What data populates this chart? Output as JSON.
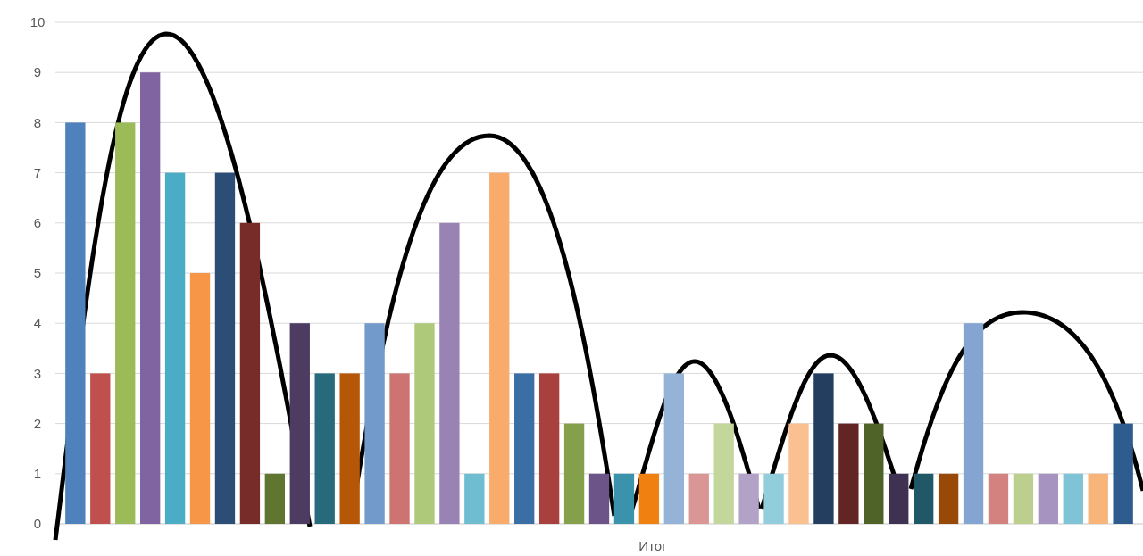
{
  "chart_data": {
    "type": "bar",
    "categories": [
      "Итог"
    ],
    "ylim": [
      0,
      10
    ],
    "yticks": [
      0,
      1,
      2,
      3,
      4,
      5,
      6,
      7,
      8,
      9,
      10
    ],
    "grid": "y",
    "series": [
      {
        "color": "#4f81bd",
        "values": [
          8
        ]
      },
      {
        "color": "#c0504d",
        "values": [
          3
        ]
      },
      {
        "color": "#9bbb59",
        "values": [
          8
        ]
      },
      {
        "color": "#8064a2",
        "values": [
          9
        ]
      },
      {
        "color": "#4bacc6",
        "values": [
          7
        ]
      },
      {
        "color": "#f79646",
        "values": [
          5
        ]
      },
      {
        "color": "#2c4d75",
        "values": [
          7
        ]
      },
      {
        "color": "#772c2a",
        "values": [
          6
        ]
      },
      {
        "color": "#5f7530",
        "values": [
          1
        ]
      },
      {
        "color": "#4d3b62",
        "values": [
          4
        ]
      },
      {
        "color": "#276a7c",
        "values": [
          3
        ]
      },
      {
        "color": "#b65708",
        "values": [
          3
        ]
      },
      {
        "color": "#729aca",
        "values": [
          4
        ]
      },
      {
        "color": "#cd7371",
        "values": [
          3
        ]
      },
      {
        "color": "#afc97a",
        "values": [
          4
        ]
      },
      {
        "color": "#9983b5",
        "values": [
          6
        ]
      },
      {
        "color": "#6fbdd1",
        "values": [
          1
        ]
      },
      {
        "color": "#f9ab6b",
        "values": [
          7
        ]
      },
      {
        "color": "#3a6ea5",
        "values": [
          3
        ]
      },
      {
        "color": "#a8403d",
        "values": [
          3
        ]
      },
      {
        "color": "#84a04b",
        "values": [
          2
        ]
      },
      {
        "color": "#6c5489",
        "values": [
          1
        ]
      },
      {
        "color": "#3b93ab",
        "values": [
          1
        ]
      },
      {
        "color": "#f0800f",
        "values": [
          1
        ]
      },
      {
        "color": "#95b3d7",
        "values": [
          3
        ]
      },
      {
        "color": "#d99694",
        "values": [
          1
        ]
      },
      {
        "color": "#c3d69b",
        "values": [
          2
        ]
      },
      {
        "color": "#b3a2c7",
        "values": [
          1
        ]
      },
      {
        "color": "#92cddc",
        "values": [
          1
        ]
      },
      {
        "color": "#fac090",
        "values": [
          2
        ]
      },
      {
        "color": "#233e5f",
        "values": [
          3
        ]
      },
      {
        "color": "#632523",
        "values": [
          2
        ]
      },
      {
        "color": "#4f6228",
        "values": [
          2
        ]
      },
      {
        "color": "#3f3151",
        "values": [
          1
        ]
      },
      {
        "color": "#205867",
        "values": [
          1
        ]
      },
      {
        "color": "#984807",
        "values": [
          1
        ]
      },
      {
        "color": "#84a5d1",
        "values": [
          4
        ]
      },
      {
        "color": "#d38280",
        "values": [
          1
        ]
      },
      {
        "color": "#bccf8f",
        "values": [
          1
        ]
      },
      {
        "color": "#a693bf",
        "values": [
          1
        ]
      },
      {
        "color": "#7fc4d6",
        "values": [
          1
        ]
      },
      {
        "color": "#f8b57a",
        "values": [
          1
        ]
      },
      {
        "color": "#2f5c8f",
        "values": [
          2
        ]
      }
    ]
  }
}
